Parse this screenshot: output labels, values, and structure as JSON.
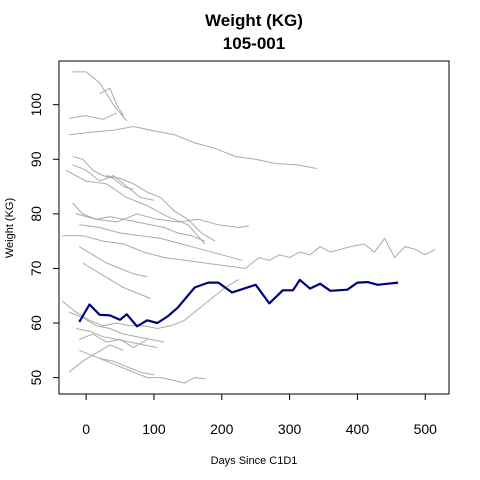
{
  "chart_data": {
    "type": "line",
    "title": "Weight (KG)",
    "subtitle": "105-001",
    "xlabel": "Days Since C1D1",
    "ylabel": "Weight (KG)",
    "xlim": [
      -40,
      535
    ],
    "ylim": [
      47,
      108
    ],
    "x_ticks": [
      0,
      100,
      200,
      300,
      400,
      500
    ],
    "y_ticks": [
      50,
      60,
      70,
      80,
      90,
      100
    ],
    "grid": false,
    "legend": "none",
    "colors": {
      "highlight": "#000080",
      "background_series": "#aaaaaa",
      "axis": "#000000"
    },
    "highlight_series": {
      "name": "105-001",
      "x": [
        -10,
        5,
        20,
        35,
        50,
        60,
        75,
        90,
        105,
        120,
        135,
        160,
        180,
        195,
        215,
        230,
        250,
        270,
        290,
        305,
        315,
        330,
        345,
        360,
        385,
        400,
        415,
        430,
        445,
        460
      ],
      "y": [
        60.2,
        63.4,
        61.5,
        61.4,
        60.6,
        61.6,
        59.4,
        60.5,
        60.0,
        61.2,
        62.8,
        66.5,
        67.4,
        67.4,
        65.6,
        66.2,
        67.0,
        63.6,
        66.0,
        66.0,
        67.9,
        66.3,
        67.2,
        65.9,
        66.1,
        67.4,
        67.5,
        67.0,
        67.2,
        67.4
      ]
    },
    "other_series": [
      {
        "x": [
          -20,
          0,
          20,
          40,
          60
        ],
        "y": [
          106.0,
          106.0,
          104.0,
          100.0,
          97.0
        ]
      },
      {
        "x": [
          20,
          35,
          45,
          55
        ],
        "y": [
          102.0,
          103.0,
          100.0,
          98.0
        ]
      },
      {
        "x": [
          -25,
          0,
          25,
          45
        ],
        "y": [
          97.5,
          98.0,
          97.3,
          98.5
        ]
      },
      {
        "x": [
          -25,
          10,
          40,
          70,
          100,
          130,
          160,
          190,
          220,
          250,
          280,
          310,
          340
        ],
        "y": [
          94.5,
          95.0,
          95.3,
          96.0,
          95.2,
          94.5,
          93.0,
          92.0,
          90.5,
          90.0,
          89.2,
          89.0,
          88.3
        ]
      },
      {
        "x": [
          -20,
          -5,
          10,
          25,
          40,
          55,
          70
        ],
        "y": [
          90.5,
          90.0,
          88.0,
          87.0,
          86.5,
          85.0,
          84.5
        ]
      },
      {
        "x": [
          -20,
          0,
          20,
          40,
          60,
          80,
          100
        ],
        "y": [
          89.0,
          88.0,
          86.0,
          87.0,
          85.0,
          83.0,
          82.5
        ]
      },
      {
        "x": [
          30,
          50,
          70,
          90,
          110,
          130,
          150,
          170,
          190
        ],
        "y": [
          87.0,
          86.5,
          85.5,
          84.0,
          83.0,
          80.5,
          79.0,
          76.5,
          75.0
        ]
      },
      {
        "x": [
          -30,
          0,
          30,
          60,
          90,
          120,
          150,
          175
        ],
        "y": [
          88.0,
          86.0,
          85.5,
          83.0,
          81.5,
          79.5,
          78.0,
          74.5
        ]
      },
      {
        "x": [
          -20,
          -5,
          15,
          35,
          55,
          75,
          95,
          115,
          135,
          155,
          175
        ],
        "y": [
          82.0,
          80.0,
          79.0,
          79.5,
          79.0,
          78.5,
          78.0,
          77.5,
          76.5,
          76.0,
          75.0
        ]
      },
      {
        "x": [
          -15,
          15,
          45,
          75,
          105,
          135,
          165,
          195,
          225,
          240
        ],
        "y": [
          80.0,
          79.0,
          78.5,
          80.0,
          79.0,
          78.5,
          79.0,
          78.0,
          77.5,
          77.8
        ]
      },
      {
        "x": [
          -10,
          20,
          50,
          80,
          110,
          140,
          170,
          200,
          230
        ],
        "y": [
          78.0,
          77.5,
          76.5,
          76.0,
          75.5,
          74.5,
          73.5,
          72.5,
          71.5
        ]
      },
      {
        "x": [
          -35,
          -5,
          25,
          55,
          85,
          115,
          145,
          175,
          205,
          235,
          255,
          270,
          285,
          300,
          315,
          330,
          345,
          360,
          375,
          390,
          410,
          425,
          440,
          455,
          470,
          485,
          500,
          515
        ],
        "y": [
          76.0,
          76.0,
          75.0,
          74.5,
          73.0,
          72.0,
          71.5,
          71.0,
          70.5,
          70.0,
          72.0,
          71.5,
          72.5,
          72.0,
          73.0,
          72.5,
          74.0,
          73.0,
          73.5,
          74.0,
          74.5,
          73.0,
          75.5,
          72.0,
          74.0,
          73.5,
          72.5,
          73.5
        ]
      },
      {
        "x": [
          -10,
          10,
          30,
          50,
          70,
          90
        ],
        "y": [
          74.0,
          72.5,
          71.0,
          70.0,
          69.0,
          68.5
        ]
      },
      {
        "x": [
          -5,
          15,
          35,
          55,
          75,
          95
        ],
        "y": [
          71.0,
          69.5,
          68.0,
          66.5,
          65.5,
          64.5
        ]
      },
      {
        "x": [
          -35,
          -15,
          5,
          25,
          45,
          65,
          85,
          105,
          125,
          145,
          165,
          185,
          205,
          225
        ],
        "y": [
          64.0,
          62.0,
          60.5,
          59.5,
          60.0,
          59.5,
          59.5,
          59.0,
          59.5,
          60.5,
          62.5,
          64.5,
          66.5,
          68.0
        ]
      },
      {
        "x": [
          -25,
          -5,
          15,
          35,
          55,
          75,
          95,
          115
        ],
        "y": [
          62.0,
          61.0,
          59.5,
          59.0,
          58.0,
          57.5,
          57.0,
          56.5
        ]
      },
      {
        "x": [
          -15,
          5,
          25,
          45,
          65,
          85,
          105
        ],
        "y": [
          59.0,
          58.5,
          57.5,
          57.0,
          56.5,
          56.0,
          55.5
        ]
      },
      {
        "x": [
          -10,
          10,
          30,
          50,
          70,
          90
        ],
        "y": [
          57.0,
          58.0,
          56.5,
          57.0,
          55.5,
          57.0
        ]
      },
      {
        "x": [
          -25,
          -5,
          15,
          35,
          55
        ],
        "y": [
          51.0,
          53.0,
          54.5,
          56.0,
          55.0
        ]
      },
      {
        "x": [
          -10,
          10,
          30,
          50,
          70,
          90,
          110,
          130,
          145,
          160,
          175
        ],
        "y": [
          55.0,
          54.0,
          53.0,
          52.0,
          51.0,
          50.0,
          50.0,
          49.5,
          49.0,
          50.0,
          49.8
        ]
      },
      {
        "x": [
          20,
          40,
          60,
          80,
          100
        ],
        "y": [
          53.5,
          53.0,
          52.0,
          51.0,
          50.5
        ]
      }
    ]
  }
}
